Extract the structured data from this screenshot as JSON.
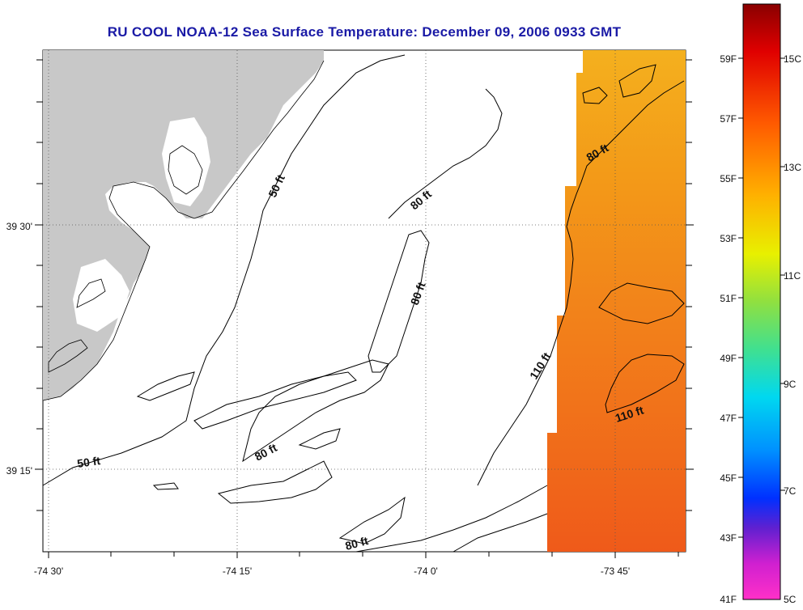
{
  "title": "RU COOL  NOAA-12  Sea Surface Temperature:  December 09, 2006 0933 GMT",
  "axes": {
    "x_ticks": [
      "-74 30'",
      "-74 15'",
      "-74 0'",
      "-73 45'"
    ],
    "y_ticks": [
      "39 30'",
      "39 15'"
    ]
  },
  "contour_labels": [
    "50 ft",
    "80 ft",
    "80 ft",
    "80 ft",
    "110 ft",
    "110 ft",
    "80 ft",
    "50 ft",
    "80 ft"
  ],
  "colorbar": {
    "f_labels": [
      "59F",
      "57F",
      "55F",
      "53F",
      "51F",
      "49F",
      "47F",
      "45F",
      "43F",
      "41F"
    ],
    "c_labels": [
      "15C",
      "13C",
      "11C",
      "9C",
      "7C",
      "5C"
    ]
  },
  "colors": {
    "title": "#1a1aa6",
    "land": "#c8c8c8",
    "warm_water": "#f08a1e"
  }
}
